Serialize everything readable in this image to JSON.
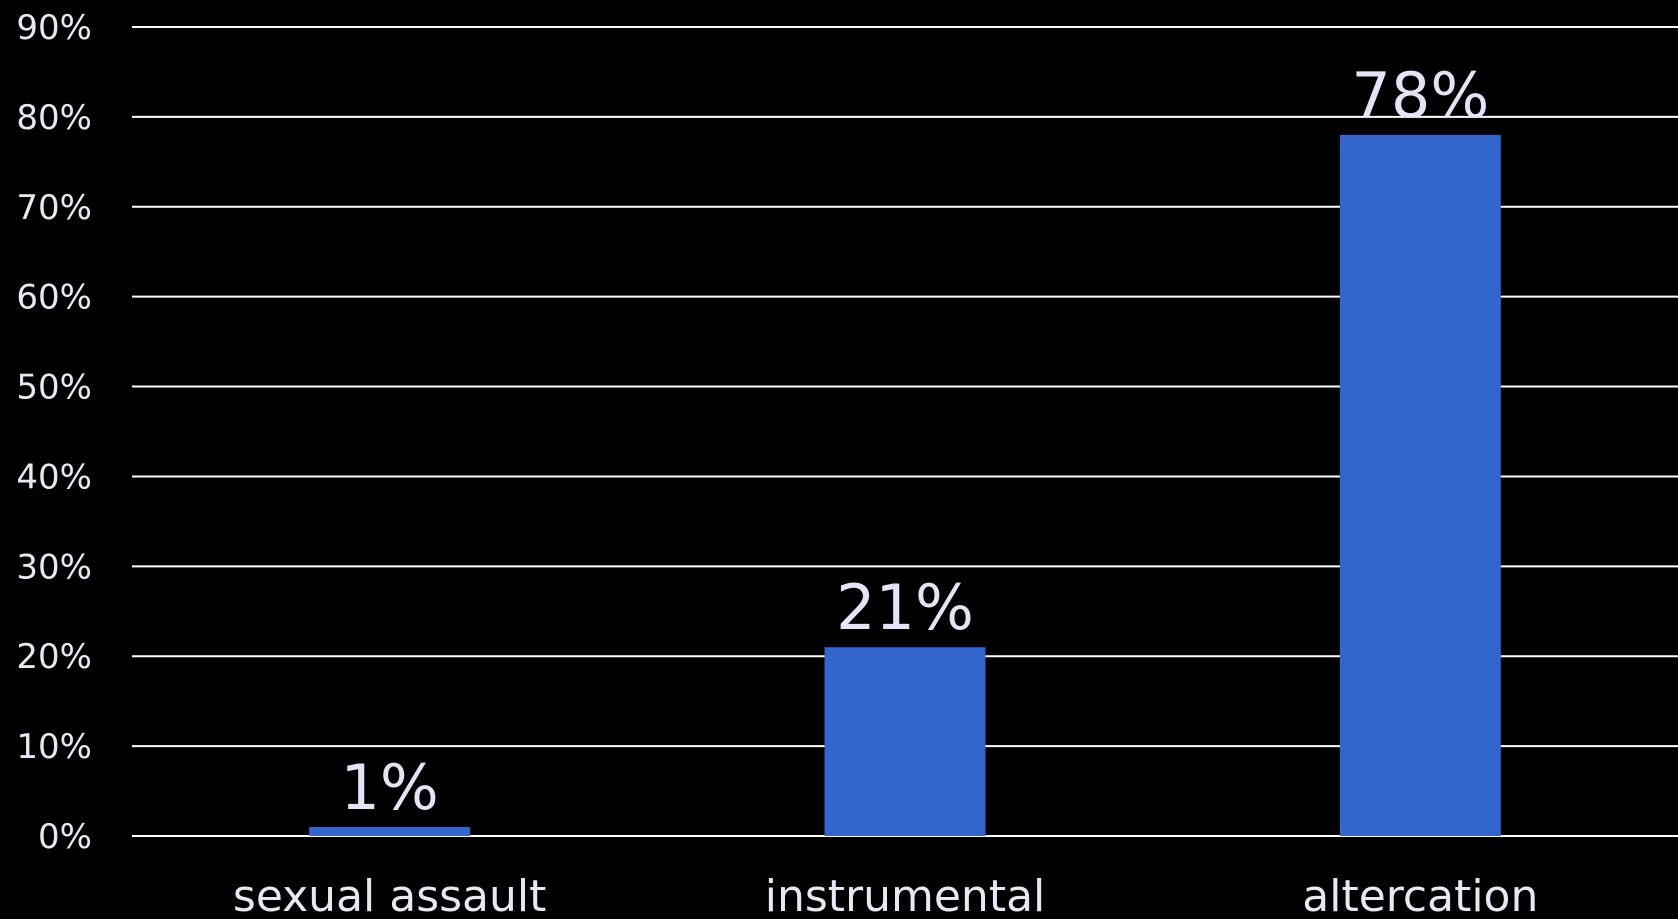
{
  "chart_data": {
    "type": "bar",
    "categories": [
      "sexual assault",
      "instrumental",
      "altercation"
    ],
    "values": [
      1,
      21,
      78
    ],
    "data_labels": [
      "1%",
      "21%",
      "78%"
    ],
    "y_tick_labels": [
      "0%",
      "10%",
      "20%",
      "30%",
      "40%",
      "50%",
      "60%",
      "70%",
      "80%",
      "90%"
    ],
    "ylim": [
      0,
      90
    ],
    "y_unit": "%",
    "grid": true,
    "legend": "none",
    "title": "",
    "xlabel": "",
    "ylabel": "",
    "colors": {
      "bar": "#3366cc",
      "background": "#000000",
      "text": "#e8e8f4",
      "grid": "#ffffff"
    }
  }
}
